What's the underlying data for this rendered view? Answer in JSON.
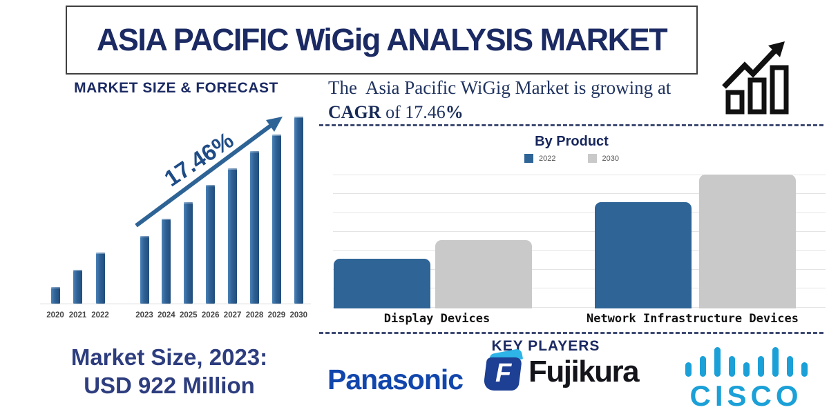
{
  "header": {
    "title": "ASIA PACIFIC WiGig ANALYSIS MARKET"
  },
  "market_forecast": {
    "heading": "MARKET SIZE & FORECAST",
    "cagr_annotation": "17.46%",
    "market_size_line1": "Market Size, 2023:",
    "market_size_line2": "USD 922 Million"
  },
  "growth_statement": {
    "line1": "The  Asia Pacific WiGig Market is growing at",
    "cagr_bold": "CAGR",
    "middle": " of 17.46",
    "percent": "%"
  },
  "by_product": {
    "title": "By Product"
  },
  "key_players": {
    "heading": "KEY PLAYERS",
    "panasonic": "Panasonic",
    "fujikura": "Fujikura",
    "fujikura_initial": "F",
    "cisco": "CISCO"
  },
  "colors": {
    "navy_text": "#1b2a63",
    "steel_blue_bar": "#2e6195",
    "gray_bar": "#c9c9c9",
    "dashed_line": "#3d4a72",
    "panasonic_blue": "#1146ac",
    "fujikura_dark_blue": "#1d3f94",
    "fujikura_cyan": "#2eb4e7",
    "cisco_blue": "#1ba0d7"
  },
  "chart_data": [
    {
      "type": "bar",
      "title": "MARKET SIZE & FORECAST",
      "categories": [
        "2020",
        "2021",
        "2022",
        "2023",
        "2024",
        "2025",
        "2026",
        "2027",
        "2028",
        "2029",
        "2030"
      ],
      "values": [
        24,
        49,
        74,
        98,
        123,
        147,
        172,
        196,
        221,
        245,
        271
      ],
      "value_units": "relative bar height (no value axis shown)",
      "annotation": "17.46%",
      "annotation_meaning": "CAGR growth arrow",
      "xlabel": "",
      "ylabel": "",
      "grid": false,
      "group_gap_after": "2022",
      "bar_color": "#2e6195"
    },
    {
      "type": "bar",
      "title": "By Product",
      "categories": [
        "Display Devices",
        "Network Infrastructure Devices"
      ],
      "series": [
        {
          "name": "2022",
          "color": "#2e6496",
          "values": [
            72,
            154
          ]
        },
        {
          "name": "2030",
          "color": "#c9c9c9",
          "values": [
            99,
            194
          ]
        }
      ],
      "value_units": "relative bar height (no value axis shown)",
      "ylim": [
        0,
        197
      ],
      "grid": true,
      "gridline_count": 8,
      "legend_position": "top"
    }
  ]
}
